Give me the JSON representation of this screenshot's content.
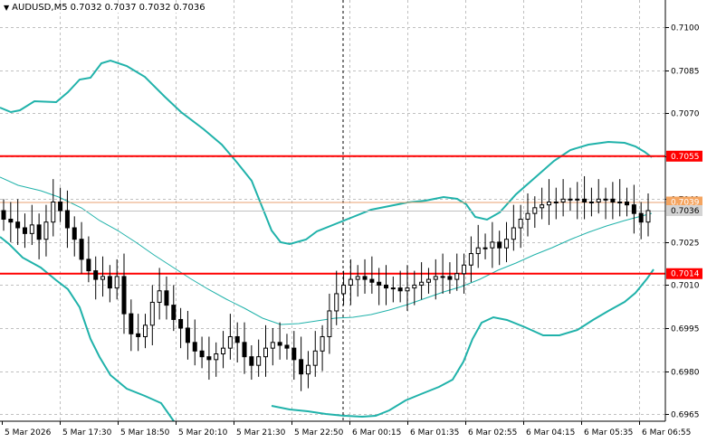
{
  "header": {
    "symbol": "AUDUSD,M5",
    "open": "0.7032",
    "high": "0.7037",
    "low": "0.7032",
    "close": "0.7036"
  },
  "colors": {
    "background": "#ffffff",
    "grid": "#c0c0c0",
    "candle": "#000000",
    "bollinger": "#20b2aa",
    "moving_average": "#20b2aa",
    "level_lines": "#ff0000",
    "bid_line": "#c0c0c0"
  },
  "price_axis": {
    "ticks": [
      "0.7100",
      "0.7085",
      "0.7070",
      "0.7055",
      "0.7040",
      "0.7025",
      "0.7010",
      "0.6995",
      "0.6980",
      "0.6965"
    ],
    "range": [
      0.69625,
      0.71095
    ]
  },
  "time_axis": {
    "labels": [
      "5 Mar 2026",
      "5 Mar 17:30",
      "5 Mar 18:50",
      "5 Mar 20:10",
      "5 Mar 21:30",
      "5 Mar 22:50",
      "6 Mar 00:15",
      "6 Mar 01:35",
      "6 Mar 02:55",
      "6 Mar 04:15",
      "6 Mar 05:35",
      "6 Mar 06:55"
    ]
  },
  "level_lines": [
    {
      "price": 0.7055,
      "label": "0.7055"
    },
    {
      "price": 0.7014,
      "label": "0.7014"
    }
  ],
  "price_labels": {
    "reference": {
      "price": 0.7039,
      "label": "0.7039"
    },
    "bid": {
      "price": 0.7036,
      "label": "0.7036"
    }
  },
  "session_separator": {
    "time": "6 Mar 00:00"
  },
  "chart_data": {
    "type": "candlestick",
    "series": [
      {
        "name": "price",
        "close_path": [
          0.7033,
          0.7032,
          0.703,
          0.7028,
          0.7031,
          0.7026,
          0.7032,
          0.7039,
          0.7036,
          0.703,
          0.7026,
          0.7019,
          0.7015,
          0.7012,
          0.7013,
          0.7009,
          0.7013,
          0.7,
          0.6993,
          0.6992,
          0.6996,
          0.7004,
          0.7008,
          0.7003,
          0.6998,
          0.6995,
          0.699,
          0.6987,
          0.6985,
          0.6984,
          0.6986,
          0.6988,
          0.6992,
          0.699,
          0.6985,
          0.6982,
          0.6985,
          0.6988,
          0.699,
          0.6989,
          0.6988,
          0.6984,
          0.6979,
          0.6982,
          0.6987,
          0.6992,
          0.7001,
          0.7007,
          0.701,
          0.7012,
          0.7013,
          0.7012,
          0.7011,
          0.701,
          0.7009,
          0.7009,
          0.7008,
          0.7009,
          0.701,
          0.7011,
          0.7012,
          0.7013,
          0.7013,
          0.7012,
          0.7014,
          0.7017,
          0.7021,
          0.7023,
          0.7023,
          0.7025,
          0.7023,
          0.7026,
          0.703,
          0.7033,
          0.7035,
          0.7037,
          0.7038,
          0.7039,
          0.7039,
          0.704,
          0.704,
          0.704,
          0.7039,
          0.7039,
          0.704,
          0.704,
          0.7039,
          0.7039,
          0.7038,
          0.7035,
          0.7032,
          0.7036
        ]
      }
    ],
    "indicators": [
      "Bollinger Bands",
      "Moving Average"
    ],
    "ylim": [
      0.69625,
      0.71095
    ],
    "grid": true
  }
}
